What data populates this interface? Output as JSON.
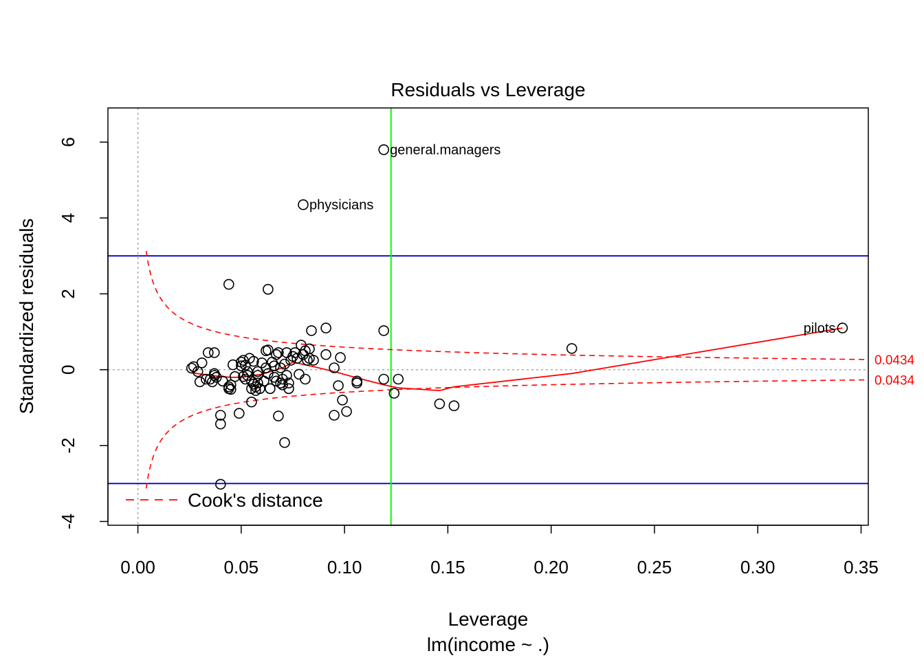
{
  "chart_data": {
    "type": "scatter",
    "title": "Residuals vs Leverage",
    "xlabel": "Leverage",
    "subtitle": "lm(income ~ .)",
    "ylabel": "Standardized residuals",
    "xlim": [
      -0.0145,
      0.3535
    ],
    "ylim": [
      -4.1,
      6.9
    ],
    "xticks": [
      0.0,
      0.05,
      0.1,
      0.15,
      0.2,
      0.25,
      0.3,
      0.35
    ],
    "xtick_labels": [
      "0.00",
      "0.05",
      "0.10",
      "0.15",
      "0.20",
      "0.25",
      "0.30",
      "0.35"
    ],
    "yticks": [
      -4,
      -2,
      0,
      2,
      4,
      6
    ],
    "ytick_labels": [
      "-4",
      "-2",
      "0",
      "2",
      "4",
      "6"
    ],
    "hlines": [
      {
        "y": 3,
        "color": "#0000cd"
      },
      {
        "y": -3,
        "color": "#0000cd"
      }
    ],
    "vline": {
      "x": 0.1225,
      "color": "#00ff00"
    },
    "reference_lines": {
      "h": 0,
      "v": 0,
      "color": "#aaaaaa"
    },
    "cook": {
      "level": 0.0434,
      "label": "0.0434",
      "coef": 0.0393,
      "color": "#ff0000",
      "legend": "Cook's distance"
    },
    "points": [
      [
        0.119,
        5.8
      ],
      [
        0.08,
        4.35
      ],
      [
        0.341,
        1.1
      ],
      [
        0.044,
        2.25
      ],
      [
        0.063,
        2.12
      ],
      [
        0.119,
        1.03
      ],
      [
        0.21,
        0.56
      ],
      [
        0.026,
        0.04
      ],
      [
        0.027,
        0.08
      ],
      [
        0.029,
        -0.05
      ],
      [
        0.03,
        -0.32
      ],
      [
        0.031,
        0.18
      ],
      [
        0.033,
        -0.25
      ],
      [
        0.034,
        0.45
      ],
      [
        0.035,
        -0.25
      ],
      [
        0.036,
        -0.32
      ],
      [
        0.037,
        -0.15
      ],
      [
        0.037,
        -0.1
      ],
      [
        0.037,
        0.45
      ],
      [
        0.038,
        -0.2
      ],
      [
        0.04,
        -1.2
      ],
      [
        0.04,
        -1.43
      ],
      [
        0.041,
        -0.3
      ],
      [
        0.044,
        -0.45
      ],
      [
        0.044,
        -0.5
      ],
      [
        0.045,
        -0.52
      ],
      [
        0.045,
        -0.4
      ],
      [
        0.046,
        0.13
      ],
      [
        0.047,
        -0.18
      ],
      [
        0.049,
        -1.15
      ],
      [
        0.05,
        0.2
      ],
      [
        0.05,
        0.1
      ],
      [
        0.051,
        0.25
      ],
      [
        0.051,
        -0.18
      ],
      [
        0.052,
        -0.25
      ],
      [
        0.052,
        0.12
      ],
      [
        0.053,
        -0.05
      ],
      [
        0.053,
        -0.15
      ],
      [
        0.054,
        0.3
      ],
      [
        0.055,
        -0.5
      ],
      [
        0.055,
        -0.85
      ],
      [
        0.055,
        -0.3
      ],
      [
        0.056,
        0.22
      ],
      [
        0.056,
        -0.38
      ],
      [
        0.057,
        -0.55
      ],
      [
        0.057,
        -0.45
      ],
      [
        0.058,
        -0.05
      ],
      [
        0.058,
        -0.15
      ],
      [
        0.058,
        -0.35
      ],
      [
        0.059,
        -0.5
      ],
      [
        0.06,
        0.18
      ],
      [
        0.061,
        -0.3
      ],
      [
        0.062,
        0.05
      ],
      [
        0.062,
        0.5
      ],
      [
        0.063,
        0.52
      ],
      [
        0.063,
        -0.1
      ],
      [
        0.064,
        -0.5
      ],
      [
        0.065,
        0.2
      ],
      [
        0.066,
        0.1
      ],
      [
        0.066,
        -0.2
      ],
      [
        0.067,
        0.4
      ],
      [
        0.067,
        -0.3
      ],
      [
        0.068,
        0.45
      ],
      [
        0.068,
        -1.22
      ],
      [
        0.069,
        0.05
      ],
      [
        0.069,
        -0.35
      ],
      [
        0.07,
        -0.25
      ],
      [
        0.07,
        -0.4
      ],
      [
        0.071,
        0.15
      ],
      [
        0.071,
        -1.92
      ],
      [
        0.072,
        0.45
      ],
      [
        0.072,
        -0.15
      ],
      [
        0.073,
        -0.35
      ],
      [
        0.073,
        -0.5
      ],
      [
        0.074,
        0.25
      ],
      [
        0.075,
        0.35
      ],
      [
        0.076,
        0.45
      ],
      [
        0.077,
        0.3
      ],
      [
        0.078,
        -0.12
      ],
      [
        0.079,
        0.65
      ],
      [
        0.08,
        0.4
      ],
      [
        0.081,
        0.5
      ],
      [
        0.081,
        -0.25
      ],
      [
        0.082,
        0.25
      ],
      [
        0.083,
        0.3
      ],
      [
        0.083,
        0.55
      ],
      [
        0.084,
        1.03
      ],
      [
        0.085,
        0.25
      ],
      [
        0.091,
        1.1
      ],
      [
        0.091,
        0.4
      ],
      [
        0.095,
        -1.2
      ],
      [
        0.095,
        0.05
      ],
      [
        0.097,
        -0.42
      ],
      [
        0.098,
        0.32
      ],
      [
        0.099,
        -0.8
      ],
      [
        0.101,
        -1.1
      ],
      [
        0.106,
        -0.3
      ],
      [
        0.106,
        -0.35
      ],
      [
        0.119,
        -0.25
      ],
      [
        0.124,
        -0.62
      ],
      [
        0.126,
        -0.25
      ],
      [
        0.146,
        -0.9
      ],
      [
        0.153,
        -0.95
      ],
      [
        0.04,
        -3.02
      ]
    ],
    "point_labels": [
      {
        "x": 0.119,
        "y": 5.8,
        "text": "general.managers",
        "side": "right"
      },
      {
        "x": 0.08,
        "y": 4.35,
        "text": "physicians",
        "side": "right"
      },
      {
        "x": 0.341,
        "y": 1.1,
        "text": "pilots",
        "side": "left"
      }
    ],
    "smooth_line": {
      "color": "#ff0000",
      "x": [
        0.026,
        0.035,
        0.04,
        0.045,
        0.05,
        0.06,
        0.07,
        0.075,
        0.085,
        0.095,
        0.105,
        0.119,
        0.126,
        0.146,
        0.153,
        0.21,
        0.341
      ],
      "y": [
        -0.08,
        -0.15,
        -0.18,
        -0.2,
        -0.2,
        -0.12,
        0.05,
        0.2,
        0.08,
        -0.05,
        -0.2,
        -0.4,
        -0.48,
        -0.55,
        -0.45,
        -0.1,
        1.1
      ]
    }
  }
}
